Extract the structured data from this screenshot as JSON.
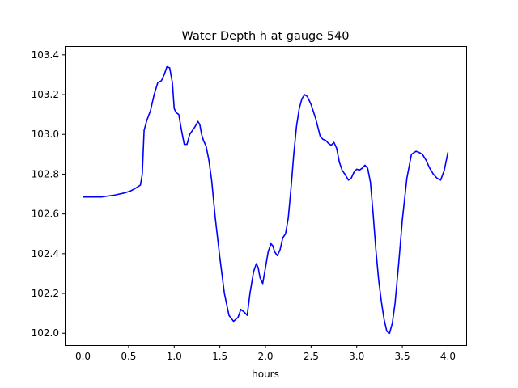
{
  "chart_data": {
    "type": "line",
    "title": "Water Depth h at gauge 540",
    "xlabel": "hours",
    "ylabel": "",
    "xlim": [
      -0.2,
      4.2
    ],
    "ylim": [
      101.94,
      103.44
    ],
    "xticks": [
      0.0,
      0.5,
      1.0,
      1.5,
      2.0,
      2.5,
      3.0,
      3.5,
      4.0
    ],
    "xtick_labels": [
      "0.0",
      "0.5",
      "1.0",
      "1.5",
      "2.0",
      "2.5",
      "3.0",
      "3.5",
      "4.0"
    ],
    "yticks": [
      102.0,
      102.2,
      102.4,
      102.6,
      102.8,
      103.0,
      103.2,
      103.4
    ],
    "ytick_labels": [
      "102.0",
      "102.2",
      "102.4",
      "102.6",
      "102.8",
      "103.0",
      "103.2",
      "103.4"
    ],
    "grid": false,
    "series": [
      {
        "color": "#0000ff",
        "x": [
          0.0,
          0.2,
          0.35,
          0.45,
          0.52,
          0.58,
          0.63,
          0.65,
          0.67,
          0.7,
          0.74,
          0.78,
          0.82,
          0.86,
          0.89,
          0.92,
          0.95,
          0.98,
          1.0,
          1.02,
          1.05,
          1.08,
          1.11,
          1.14,
          1.17,
          1.2,
          1.23,
          1.26,
          1.28,
          1.3,
          1.32,
          1.35,
          1.38,
          1.41,
          1.45,
          1.5,
          1.55,
          1.6,
          1.65,
          1.7,
          1.73,
          1.77,
          1.8,
          1.83,
          1.87,
          1.9,
          1.92,
          1.94,
          1.97,
          2.0,
          2.03,
          2.06,
          2.08,
          2.1,
          2.13,
          2.16,
          2.19,
          2.22,
          2.25,
          2.28,
          2.31,
          2.34,
          2.37,
          2.4,
          2.43,
          2.46,
          2.5,
          2.55,
          2.6,
          2.63,
          2.66,
          2.69,
          2.72,
          2.75,
          2.78,
          2.81,
          2.84,
          2.87,
          2.91,
          2.94,
          2.97,
          3.0,
          3.03,
          3.06,
          3.09,
          3.12,
          3.15,
          3.18,
          3.21,
          3.24,
          3.27,
          3.3,
          3.33,
          3.36,
          3.39,
          3.42,
          3.46,
          3.5,
          3.55,
          3.6,
          3.65,
          3.68,
          3.72,
          3.76,
          3.8,
          3.84,
          3.88,
          3.92,
          3.96,
          4.0
        ],
        "y": [
          102.685,
          102.685,
          102.695,
          102.705,
          102.715,
          102.73,
          102.745,
          102.8,
          103.02,
          103.07,
          103.12,
          103.2,
          103.26,
          103.27,
          103.3,
          103.34,
          103.335,
          103.26,
          103.13,
          103.11,
          103.1,
          103.02,
          102.95,
          102.95,
          103.0,
          103.02,
          103.04,
          103.065,
          103.05,
          103.0,
          102.97,
          102.94,
          102.87,
          102.77,
          102.58,
          102.38,
          102.2,
          102.09,
          102.06,
          102.08,
          102.12,
          102.105,
          102.09,
          102.2,
          102.31,
          102.35,
          102.33,
          102.28,
          102.25,
          102.33,
          102.41,
          102.45,
          102.44,
          102.41,
          102.39,
          102.42,
          102.48,
          102.5,
          102.58,
          102.73,
          102.9,
          103.04,
          103.13,
          103.18,
          103.2,
          103.19,
          103.15,
          103.08,
          102.99,
          102.975,
          102.97,
          102.955,
          102.945,
          102.96,
          102.93,
          102.86,
          102.82,
          102.8,
          102.77,
          102.78,
          102.81,
          102.825,
          102.82,
          102.83,
          102.845,
          102.83,
          102.76,
          102.6,
          102.42,
          102.27,
          102.16,
          102.07,
          102.01,
          102.0,
          102.05,
          102.15,
          102.35,
          102.57,
          102.78,
          102.9,
          102.915,
          102.91,
          102.9,
          102.87,
          102.83,
          102.8,
          102.78,
          102.77,
          102.82,
          102.91
        ]
      }
    ]
  }
}
